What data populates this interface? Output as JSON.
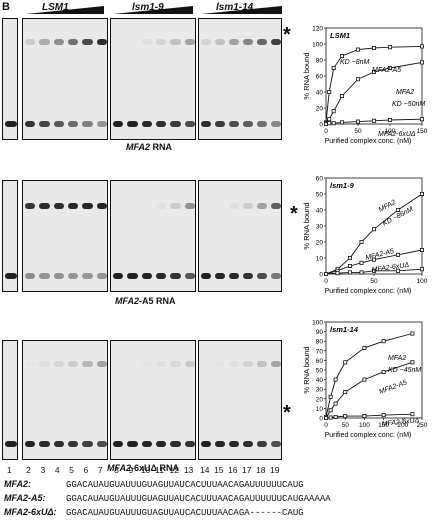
{
  "panel_letter": "B",
  "header": {
    "groups": [
      {
        "label": "LSM1"
      },
      {
        "label": "lsm1-9"
      },
      {
        "label": "lsm1-14"
      }
    ]
  },
  "rows": [
    {
      "caption_name": "MFA2",
      "caption_suffix": " RNA"
    },
    {
      "caption_name": "MFA2",
      "caption_suffix": "-A5 RNA"
    },
    {
      "caption_name": "MFA2",
      "caption_suffix": "-6xUΔ RNA"
    }
  ],
  "star": "*",
  "lane_numbers": [
    "1",
    "2",
    "3",
    "4",
    "5",
    "6",
    "7",
    "8",
    "9",
    "10",
    "11",
    "12",
    "13",
    "14",
    "15",
    "16",
    "17",
    "18",
    "19"
  ],
  "sequences": [
    {
      "name": "MFA2:",
      "seq": "GGACAUAUGUAUUUGUAGUUAUCACUUUAACAGAUUUUUUCAUG"
    },
    {
      "name": "MFA2-A5:",
      "seq": "GGACAUAUGUAUUUGUAGUUAUCACUUUAACAGAUUUUUUCAUGAAAAA"
    },
    {
      "name": "MFA2-6xUΔ:",
      "seq": "GGACAUAUGUAUUUGUAGUUAUCACUUUAACAGA------CAUG"
    }
  ],
  "chart_data": [
    {
      "type": "line",
      "title": "LSM1",
      "xlabel": "Purified complex conc. (nM)",
      "ylabel": "% RNA bound",
      "xlim": [
        0,
        150
      ],
      "ylim": [
        0,
        120
      ],
      "xticks": [
        0,
        50,
        100,
        150
      ],
      "yticks": [
        0,
        20,
        40,
        60,
        80,
        100,
        120
      ],
      "series": [
        {
          "name": "MFA2-A5",
          "x": [
            0,
            5,
            12,
            25,
            50,
            75,
            100,
            150
          ],
          "y": [
            2,
            40,
            70,
            85,
            93,
            95,
            96,
            97
          ]
        },
        {
          "name": "MFA2",
          "x": [
            0,
            5,
            12,
            25,
            50,
            75,
            100,
            150
          ],
          "y": [
            1,
            6,
            16,
            35,
            56,
            65,
            70,
            77
          ]
        },
        {
          "name": "MFA2-6xUΔ",
          "x": [
            0,
            5,
            12,
            25,
            50,
            75,
            100,
            150
          ],
          "y": [
            0,
            1,
            1,
            2,
            3,
            4,
            5,
            6
          ]
        }
      ],
      "annotations": [
        {
          "text": "KD ~8nM"
        },
        {
          "text": "MFA2-A5"
        },
        {
          "text": "MFA2"
        },
        {
          "text": "KD ~50nM"
        },
        {
          "text": "MFA2-6xUΔ"
        }
      ]
    },
    {
      "type": "line",
      "title": "lsm1-9",
      "xlabel": "Purified complex conc. (nM)",
      "ylabel": "% RNA bound",
      "xlim": [
        0,
        100
      ],
      "ylim": [
        0,
        60
      ],
      "xticks": [
        0,
        50,
        100
      ],
      "yticks": [
        0,
        10,
        20,
        30,
        40,
        50,
        60
      ],
      "series": [
        {
          "name": "MFA2",
          "x": [
            0,
            12,
            25,
            37,
            50,
            75,
            100
          ],
          "y": [
            0,
            3,
            10,
            20,
            28,
            40,
            50
          ]
        },
        {
          "name": "MFA2-A5",
          "x": [
            0,
            12,
            25,
            37,
            50,
            75,
            100
          ],
          "y": [
            0,
            2,
            5,
            7,
            9,
            12,
            15
          ]
        },
        {
          "name": "MFA2-6xUΔ",
          "x": [
            0,
            12,
            25,
            37,
            50,
            75,
            100
          ],
          "y": [
            0,
            0.5,
            1,
            1,
            2,
            2,
            3
          ]
        }
      ],
      "annotations": [
        {
          "text": "MFA2"
        },
        {
          "text": "KD ~86nM"
        },
        {
          "text": "MFA2-A5"
        },
        {
          "text": "MFA2-6xUΔ"
        }
      ]
    },
    {
      "type": "line",
      "title": "lsm1-14",
      "xlabel": "Purified complex conc. (nM)",
      "ylabel": "% RNA bound",
      "xlim": [
        0,
        250
      ],
      "ylim": [
        0,
        100
      ],
      "xticks": [
        0,
        50,
        100,
        150,
        200,
        250
      ],
      "yticks": [
        0,
        10,
        20,
        30,
        40,
        50,
        60,
        70,
        80,
        90,
        100
      ],
      "series": [
        {
          "name": "MFA2",
          "x": [
            0,
            12,
            25,
            50,
            100,
            150,
            225
          ],
          "y": [
            1,
            22,
            40,
            58,
            73,
            80,
            88
          ]
        },
        {
          "name": "MFA2-A5",
          "x": [
            0,
            12,
            25,
            50,
            100,
            150,
            225
          ],
          "y": [
            0,
            8,
            15,
            27,
            40,
            48,
            58
          ]
        },
        {
          "name": "MFA2-6xUΔ",
          "x": [
            0,
            12,
            25,
            50,
            100,
            150,
            225
          ],
          "y": [
            0,
            0.5,
            1,
            2,
            2,
            3,
            4
          ]
        }
      ],
      "annotations": [
        {
          "text": "MFA2"
        },
        {
          "text": "KD ~45nM"
        },
        {
          "text": "MFA2-A5"
        },
        {
          "text": "MFA2-6xUΔ"
        }
      ]
    }
  ]
}
